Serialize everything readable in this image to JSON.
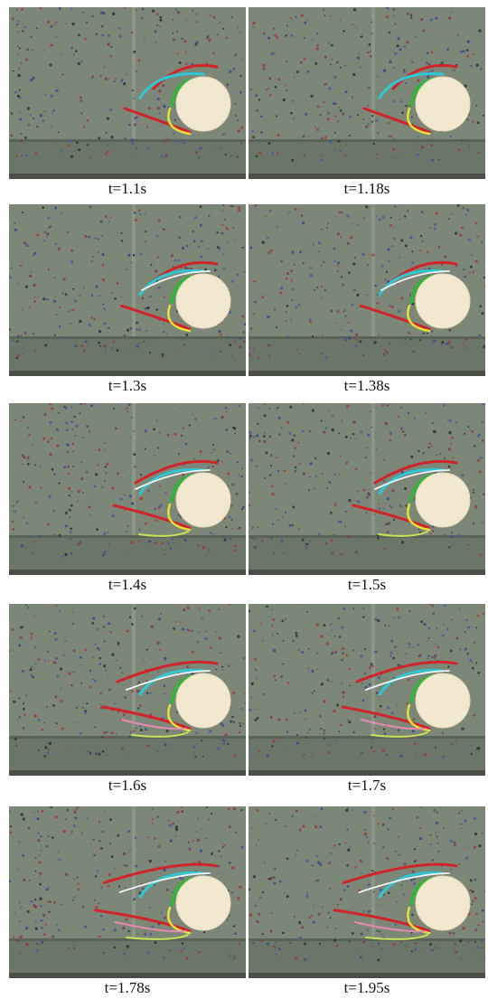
{
  "figure": {
    "frames": [
      {
        "caption": "t=1.1s",
        "stage": 0
      },
      {
        "caption": "t=1.18s",
        "stage": 0
      },
      {
        "caption": "t=1.3s",
        "stage": 1
      },
      {
        "caption": "t=1.38s",
        "stage": 1
      },
      {
        "caption": "t=1.4s",
        "stage": 2
      },
      {
        "caption": "t=1.5s",
        "stage": 2
      },
      {
        "caption": "t=1.6s",
        "stage": 3
      },
      {
        "caption": "t=1.7s",
        "stage": 3
      },
      {
        "caption": "t=1.78s",
        "stage": 4
      },
      {
        "caption": "t=1.95s",
        "stage": 4
      }
    ],
    "colors": {
      "water": "#7d8778",
      "sphere": "#f2e7cf",
      "red": "#d0242a",
      "cyan": "#2fc7d4",
      "green": "#35b33a",
      "yellow": "#e5e23a",
      "white": "#f4f4f4",
      "pink": "#e489b0",
      "lime": "#c8e35a"
    }
  }
}
